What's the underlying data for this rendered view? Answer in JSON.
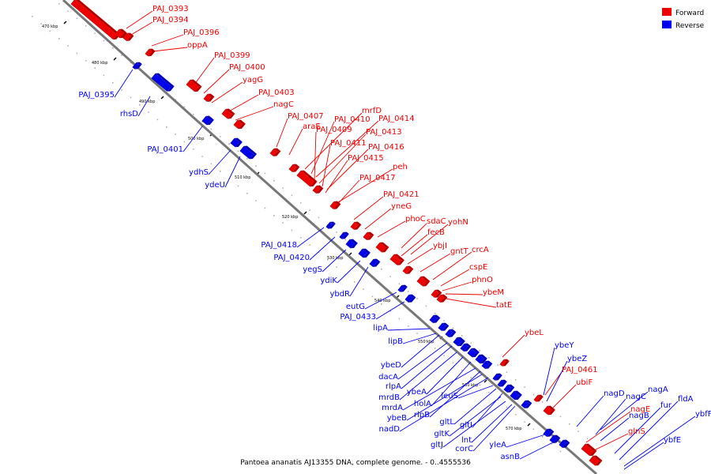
{
  "legend": [
    {
      "label": "Forward",
      "color": "#ee0000"
    },
    {
      "label": "Reverse",
      "color": "#0000ee"
    }
  ],
  "caption": "Pantoea ananatis AJ13355 DNA, complete genome. - 0..4555536",
  "axis_ticks": [
    "470 kbp",
    "480 kbp",
    "490 kbp",
    "500 kbp",
    "510 kbp",
    "520 kbp",
    "530 kbp",
    "540 kbp",
    "550 kbp",
    "560 kbp",
    "570 kbp"
  ],
  "forward_labels": [
    "PAJ_0393",
    "PAJ_0394",
    "PAJ_0396",
    "oppA",
    "PAJ_0399",
    "PAJ_0400",
    "yagG",
    "PAJ_0403",
    "nagC",
    "PAJ_0407",
    "araE",
    "mrfD",
    "PAJ_0410",
    "PAJ_0414",
    "PAJ_0409",
    "PAJ_0413",
    "PAJ_0411",
    "PAJ_0416",
    "PAJ_0415",
    "peh",
    "PAJ_0417",
    "PAJ_0421",
    "yneG",
    "phoC",
    "sdaC",
    "yohN",
    "fecB",
    "ybjI",
    "gntT",
    "crcA",
    "cspE",
    "phnO",
    "ybeM",
    "tatE",
    "ybeL",
    "PAJ_0461",
    "ubiF",
    "nagE",
    "glnS"
  ],
  "reverse_labels": [
    "PAJ_0395",
    "rhsD",
    "PAJ_0401",
    "ydhS",
    "ydeU",
    "PAJ_0418",
    "PAJ_0420",
    "yegS",
    "ydiK",
    "ybdR",
    "eutG",
    "PAJ_0433",
    "lipA",
    "lipB",
    "ybeD",
    "dacA",
    "rlpA",
    "mrdB",
    "ybeA",
    "holA",
    "mrdA",
    "rlpB",
    "ybeB",
    "nadD",
    "leuS",
    "gltL",
    "gltI",
    "gltK",
    "gltJ",
    "lnt",
    "corC",
    "yleA",
    "asnB",
    "ybeY",
    "ybeZ",
    "nagD",
    "nagA",
    "nagC",
    "nagB",
    "fur",
    "fldA",
    "ybfF",
    "ybfE"
  ]
}
